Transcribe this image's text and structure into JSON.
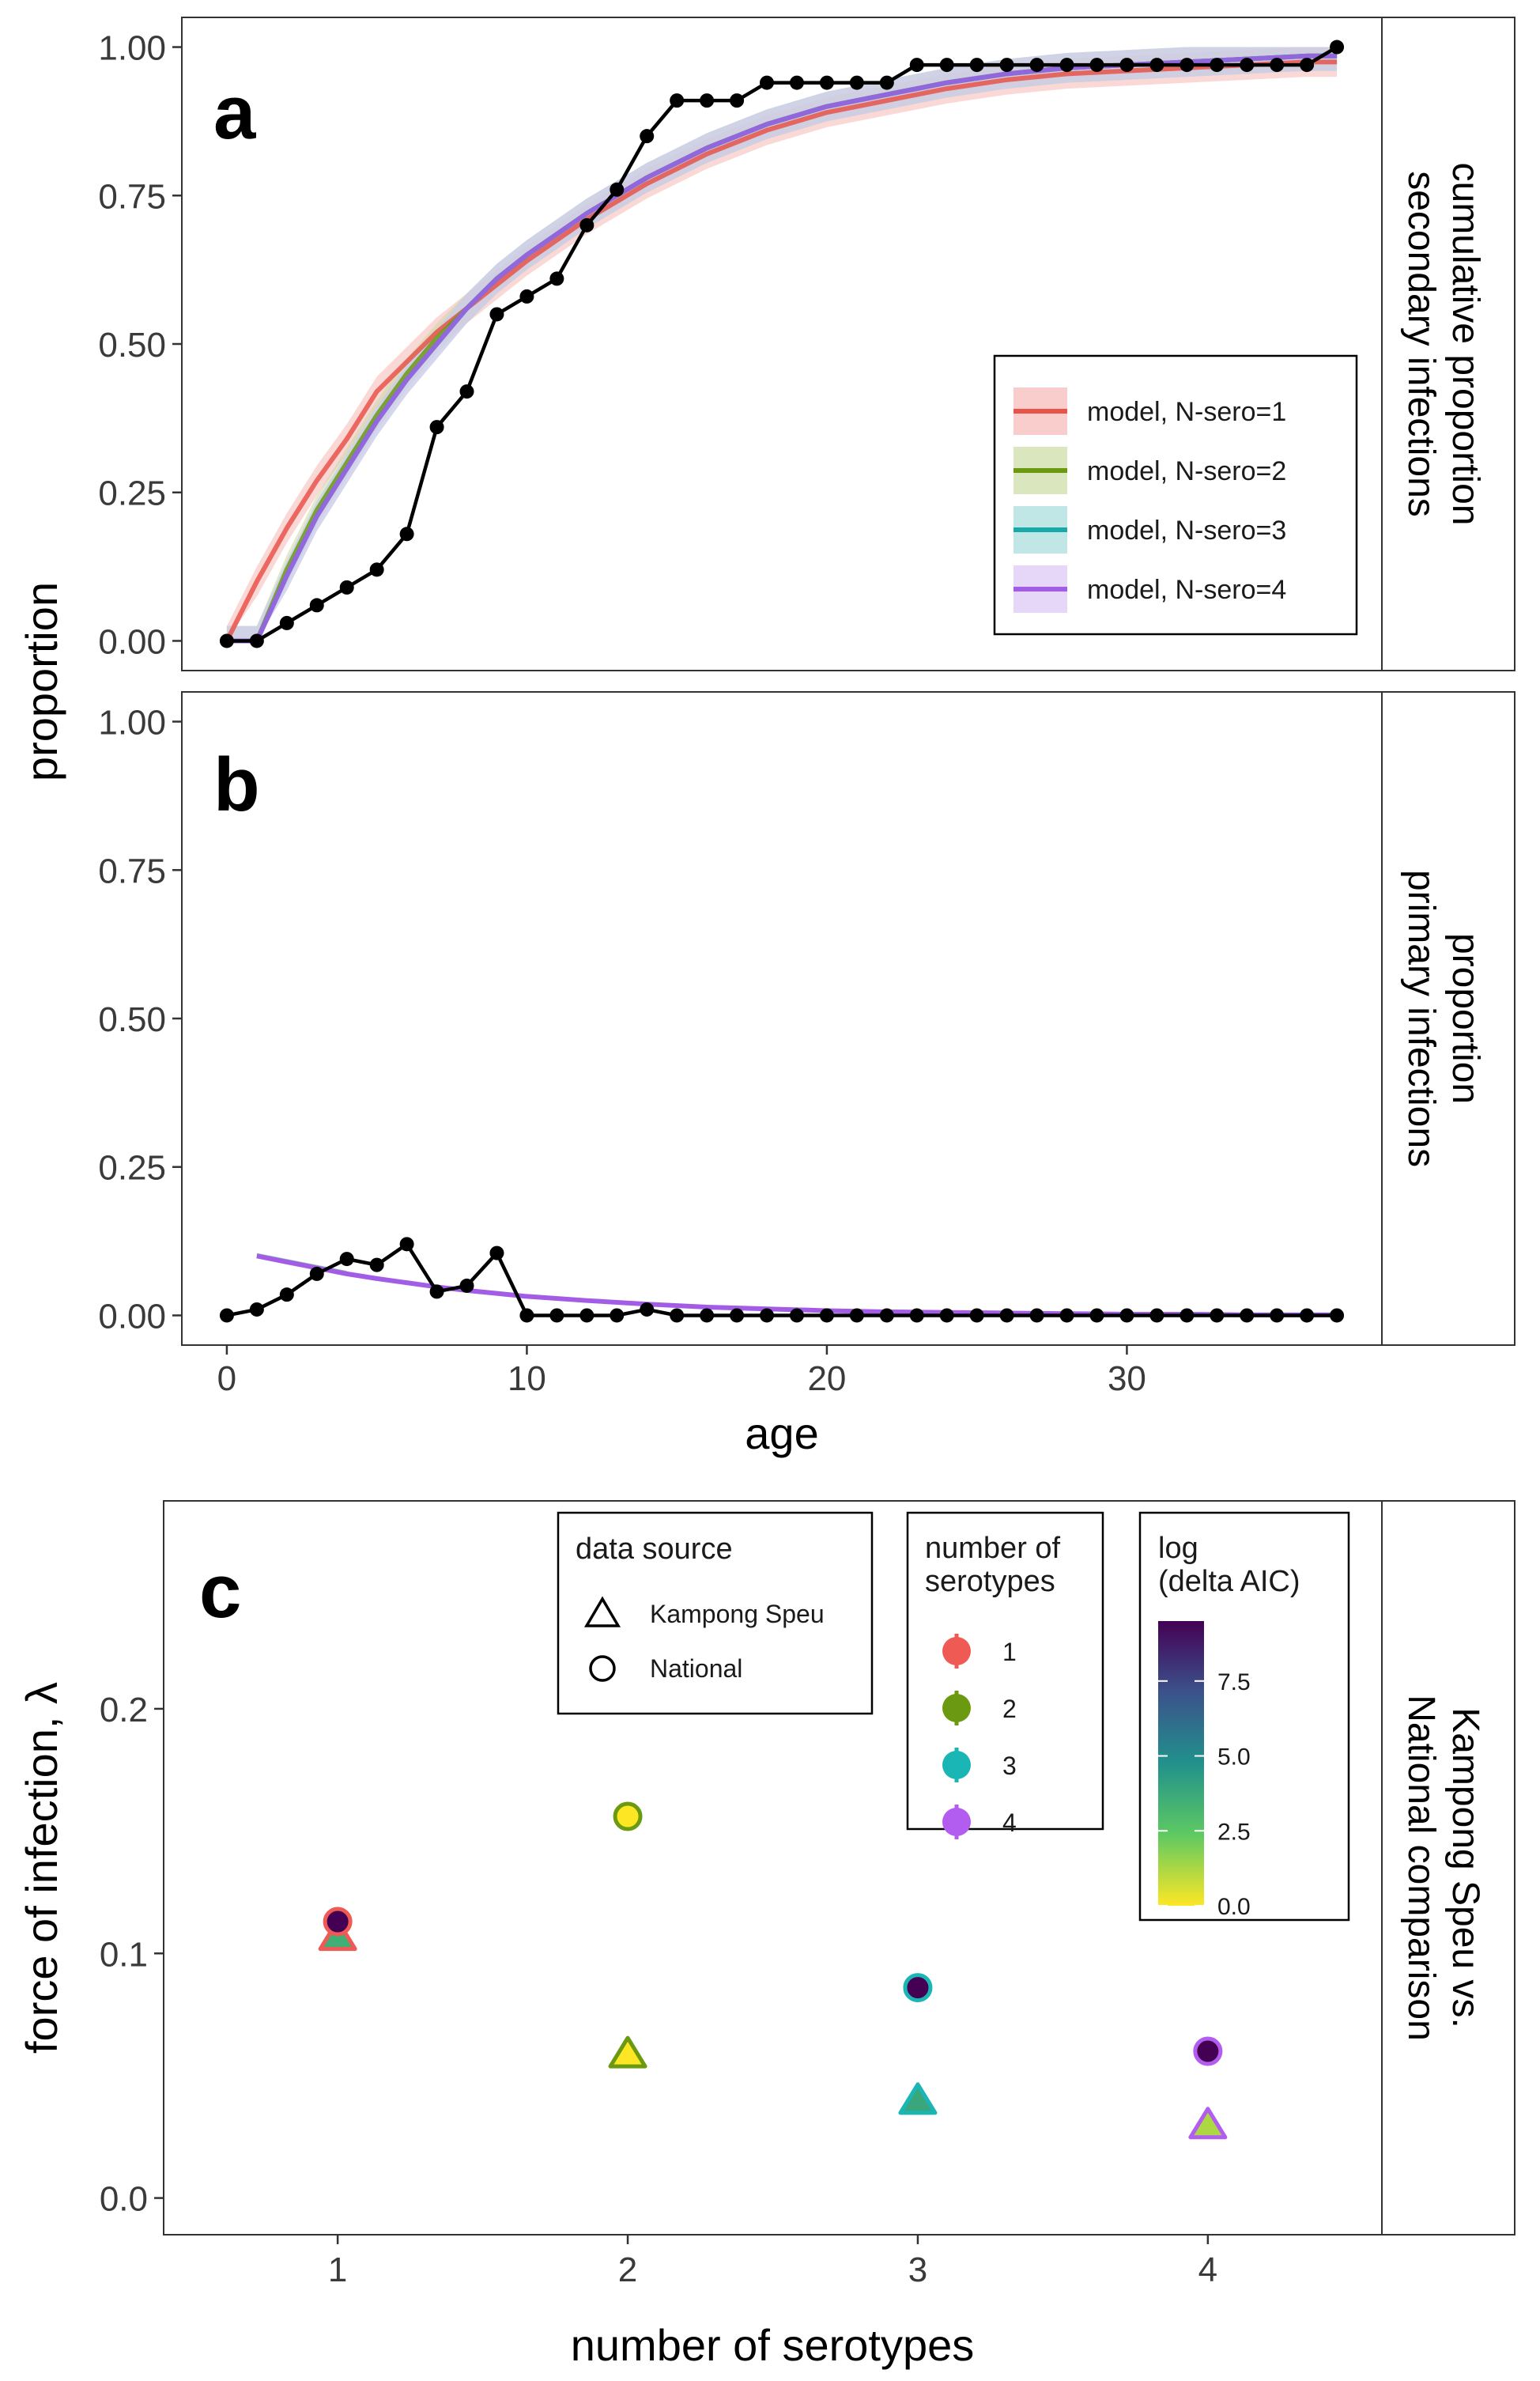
{
  "chart_data": [
    {
      "type": "line",
      "panel": "a",
      "strip_label": [
        "cumulative proportion",
        "secondary infections"
      ],
      "ylabel": "proportion",
      "xlim": [
        -1.5,
        38.5
      ],
      "ylim": [
        -0.05,
        1.05
      ],
      "yticks": [
        0,
        0.25,
        0.5,
        0.75,
        1.0
      ],
      "ytick_labels": [
        "0.00",
        "0.25",
        "0.50",
        "0.75",
        "1.00"
      ],
      "observed": {
        "x": [
          0,
          1,
          2,
          3,
          4,
          5,
          6,
          7,
          8,
          9,
          10,
          11,
          12,
          13,
          14,
          15,
          16,
          17,
          18,
          19,
          20,
          21,
          22,
          23,
          24,
          25,
          26,
          27,
          28,
          29,
          30,
          31,
          32,
          33,
          34,
          35,
          36,
          37
        ],
        "y": [
          0,
          0,
          0.03,
          0.06,
          0.09,
          0.12,
          0.18,
          0.36,
          0.42,
          0.55,
          0.58,
          0.61,
          0.7,
          0.76,
          0.85,
          0.91,
          0.91,
          0.91,
          0.94,
          0.94,
          0.94,
          0.94,
          0.94,
          0.97,
          0.97,
          0.97,
          0.97,
          0.97,
          0.97,
          0.97,
          0.97,
          0.97,
          0.97,
          0.97,
          0.97,
          0.97,
          0.97,
          1.0
        ]
      },
      "series": [
        {
          "name": "model, N-sero=1",
          "color": "#e8534a",
          "fill": "#f5b8b5",
          "x": [
            0,
            1,
            2,
            3,
            4,
            5,
            6,
            7,
            8,
            9,
            10,
            12,
            14,
            16,
            18,
            20,
            22,
            24,
            26,
            28,
            30,
            32,
            34,
            36,
            37
          ],
          "y": [
            0,
            0.1,
            0.19,
            0.27,
            0.34,
            0.42,
            0.47,
            0.52,
            0.56,
            0.6,
            0.64,
            0.71,
            0.77,
            0.82,
            0.86,
            0.89,
            0.91,
            0.93,
            0.945,
            0.955,
            0.96,
            0.965,
            0.97,
            0.975,
            0.975
          ]
        },
        {
          "name": "model, N-sero=2",
          "color": "#6b9a10",
          "fill": "#c9dba3",
          "x": [
            0,
            1,
            2,
            3,
            4,
            5,
            6,
            7,
            8,
            9,
            10,
            12,
            14,
            16,
            18,
            20,
            22,
            24,
            26,
            28,
            30,
            32,
            34,
            36,
            37
          ],
          "y": [
            0,
            0,
            0.12,
            0.22,
            0.3,
            0.38,
            0.45,
            0.51,
            0.56,
            0.61,
            0.65,
            0.72,
            0.78,
            0.83,
            0.87,
            0.9,
            0.92,
            0.94,
            0.955,
            0.965,
            0.97,
            0.975,
            0.98,
            0.985,
            0.985
          ]
        },
        {
          "name": "model, N-sero=3",
          "color": "#1aa9a9",
          "fill": "#a6dcdc",
          "x": [
            0,
            1,
            2,
            3,
            4,
            5,
            6,
            7,
            8,
            9,
            10,
            12,
            14,
            16,
            18,
            20,
            22,
            24,
            26,
            28,
            30,
            32,
            34,
            36,
            37
          ],
          "y": [
            0,
            0,
            0.11,
            0.21,
            0.29,
            0.37,
            0.44,
            0.5,
            0.56,
            0.61,
            0.65,
            0.72,
            0.78,
            0.83,
            0.87,
            0.9,
            0.92,
            0.94,
            0.955,
            0.965,
            0.97,
            0.975,
            0.98,
            0.985,
            0.985
          ]
        },
        {
          "name": "model, N-sero=4",
          "color": "#a35ce6",
          "fill": "#dcc5f3",
          "x": [
            0,
            1,
            2,
            3,
            4,
            5,
            6,
            7,
            8,
            9,
            10,
            12,
            14,
            16,
            18,
            20,
            22,
            24,
            26,
            28,
            30,
            32,
            34,
            36,
            37
          ],
          "y": [
            0,
            0,
            0.11,
            0.21,
            0.29,
            0.37,
            0.44,
            0.5,
            0.56,
            0.61,
            0.65,
            0.72,
            0.78,
            0.83,
            0.87,
            0.9,
            0.92,
            0.94,
            0.955,
            0.965,
            0.97,
            0.975,
            0.98,
            0.985,
            0.985
          ]
        }
      ]
    },
    {
      "type": "line",
      "panel": "b",
      "strip_label": [
        "proportion",
        "primary infections"
      ],
      "xlabel": "age",
      "xlim": [
        -1.5,
        38.5
      ],
      "ylim": [
        -0.05,
        1.05
      ],
      "xticks": [
        0,
        10,
        20,
        30
      ],
      "yticks": [
        0,
        0.25,
        0.5,
        0.75,
        1.0
      ],
      "ytick_labels": [
        "0.00",
        "0.25",
        "0.50",
        "0.75",
        "1.00"
      ],
      "observed": {
        "x": [
          0,
          1,
          2,
          3,
          4,
          5,
          6,
          7,
          8,
          9,
          10,
          11,
          12,
          13,
          14,
          15,
          16,
          17,
          18,
          19,
          20,
          21,
          22,
          23,
          24,
          25,
          26,
          27,
          28,
          29,
          30,
          31,
          32,
          33,
          34,
          35,
          36,
          37
        ],
        "y": [
          0,
          0.01,
          0.035,
          0.07,
          0.095,
          0.085,
          0.12,
          0.04,
          0.05,
          0.105,
          0,
          0,
          0,
          0,
          0.01,
          0,
          0,
          0,
          0,
          0,
          0,
          0,
          0,
          0,
          0,
          0,
          0,
          0,
          0,
          0,
          0,
          0,
          0,
          0,
          0,
          0,
          0,
          0
        ]
      },
      "model": {
        "color": "#a35ce6",
        "x": [
          1,
          2,
          3,
          4,
          5,
          6,
          7,
          8,
          9,
          10,
          12,
          14,
          16,
          18,
          20,
          22,
          24,
          26,
          28,
          30,
          32,
          34,
          36,
          37
        ],
        "y": [
          0.1,
          0.09,
          0.08,
          0.07,
          0.062,
          0.055,
          0.048,
          0.042,
          0.037,
          0.032,
          0.025,
          0.019,
          0.014,
          0.011,
          0.008,
          0.006,
          0.005,
          0.004,
          0.003,
          0.002,
          0.002,
          0.001,
          0.001,
          0.001
        ]
      }
    },
    {
      "type": "scatter",
      "panel": "c",
      "strip_label": [
        "Kampong Speu vs.",
        "National comparison"
      ],
      "xlabel": "number of serotypes",
      "ylabel": "force of infection, λ",
      "xlim": [
        0.4,
        4.6
      ],
      "ylim": [
        -0.015,
        0.285
      ],
      "xticks": [
        1,
        2,
        3,
        4
      ],
      "yticks": [
        0.0,
        0.1,
        0.2
      ],
      "ytick_labels": [
        "0.0",
        "0.1",
        "0.2"
      ],
      "points": [
        {
          "serotypes": 1,
          "source": "Kampong Speu",
          "lambda": 0.107,
          "delta_aic": 3.5
        },
        {
          "serotypes": 1,
          "source": "National",
          "lambda": 0.113,
          "delta_aic": 9.5
        },
        {
          "serotypes": 2,
          "source": "Kampong Speu",
          "lambda": 0.059,
          "delta_aic": 0.0
        },
        {
          "serotypes": 2,
          "source": "National",
          "lambda": 0.156,
          "delta_aic": 0.0
        },
        {
          "serotypes": 3,
          "source": "Kampong Speu",
          "lambda": 0.04,
          "delta_aic": 3.8
        },
        {
          "serotypes": 3,
          "source": "National",
          "lambda": 0.086,
          "delta_aic": 9.5
        },
        {
          "serotypes": 4,
          "source": "Kampong Speu",
          "lambda": 0.03,
          "delta_aic": 1.2
        },
        {
          "serotypes": 4,
          "source": "National",
          "lambda": 0.06,
          "delta_aic": 9.5
        }
      ],
      "legend_source": {
        "title": "data source",
        "items": [
          "Kampong Speu",
          "National"
        ]
      },
      "legend_serotypes": {
        "title": [
          "number of",
          "serotypes"
        ],
        "items": [
          {
            "label": "1",
            "color": "#ef5a55"
          },
          {
            "label": "2",
            "color": "#6b9a10"
          },
          {
            "label": "3",
            "color": "#1ab5b5"
          },
          {
            "label": "4",
            "color": "#b35cf0"
          }
        ]
      },
      "legend_aic": {
        "title": [
          "log",
          "(delta AIC)"
        ],
        "range": [
          0,
          9.5
        ],
        "ticks": [
          0.0,
          2.5,
          5.0,
          7.5
        ],
        "tick_labels": [
          "0.0",
          "2.5",
          "5.0",
          "7.5"
        ]
      }
    }
  ]
}
